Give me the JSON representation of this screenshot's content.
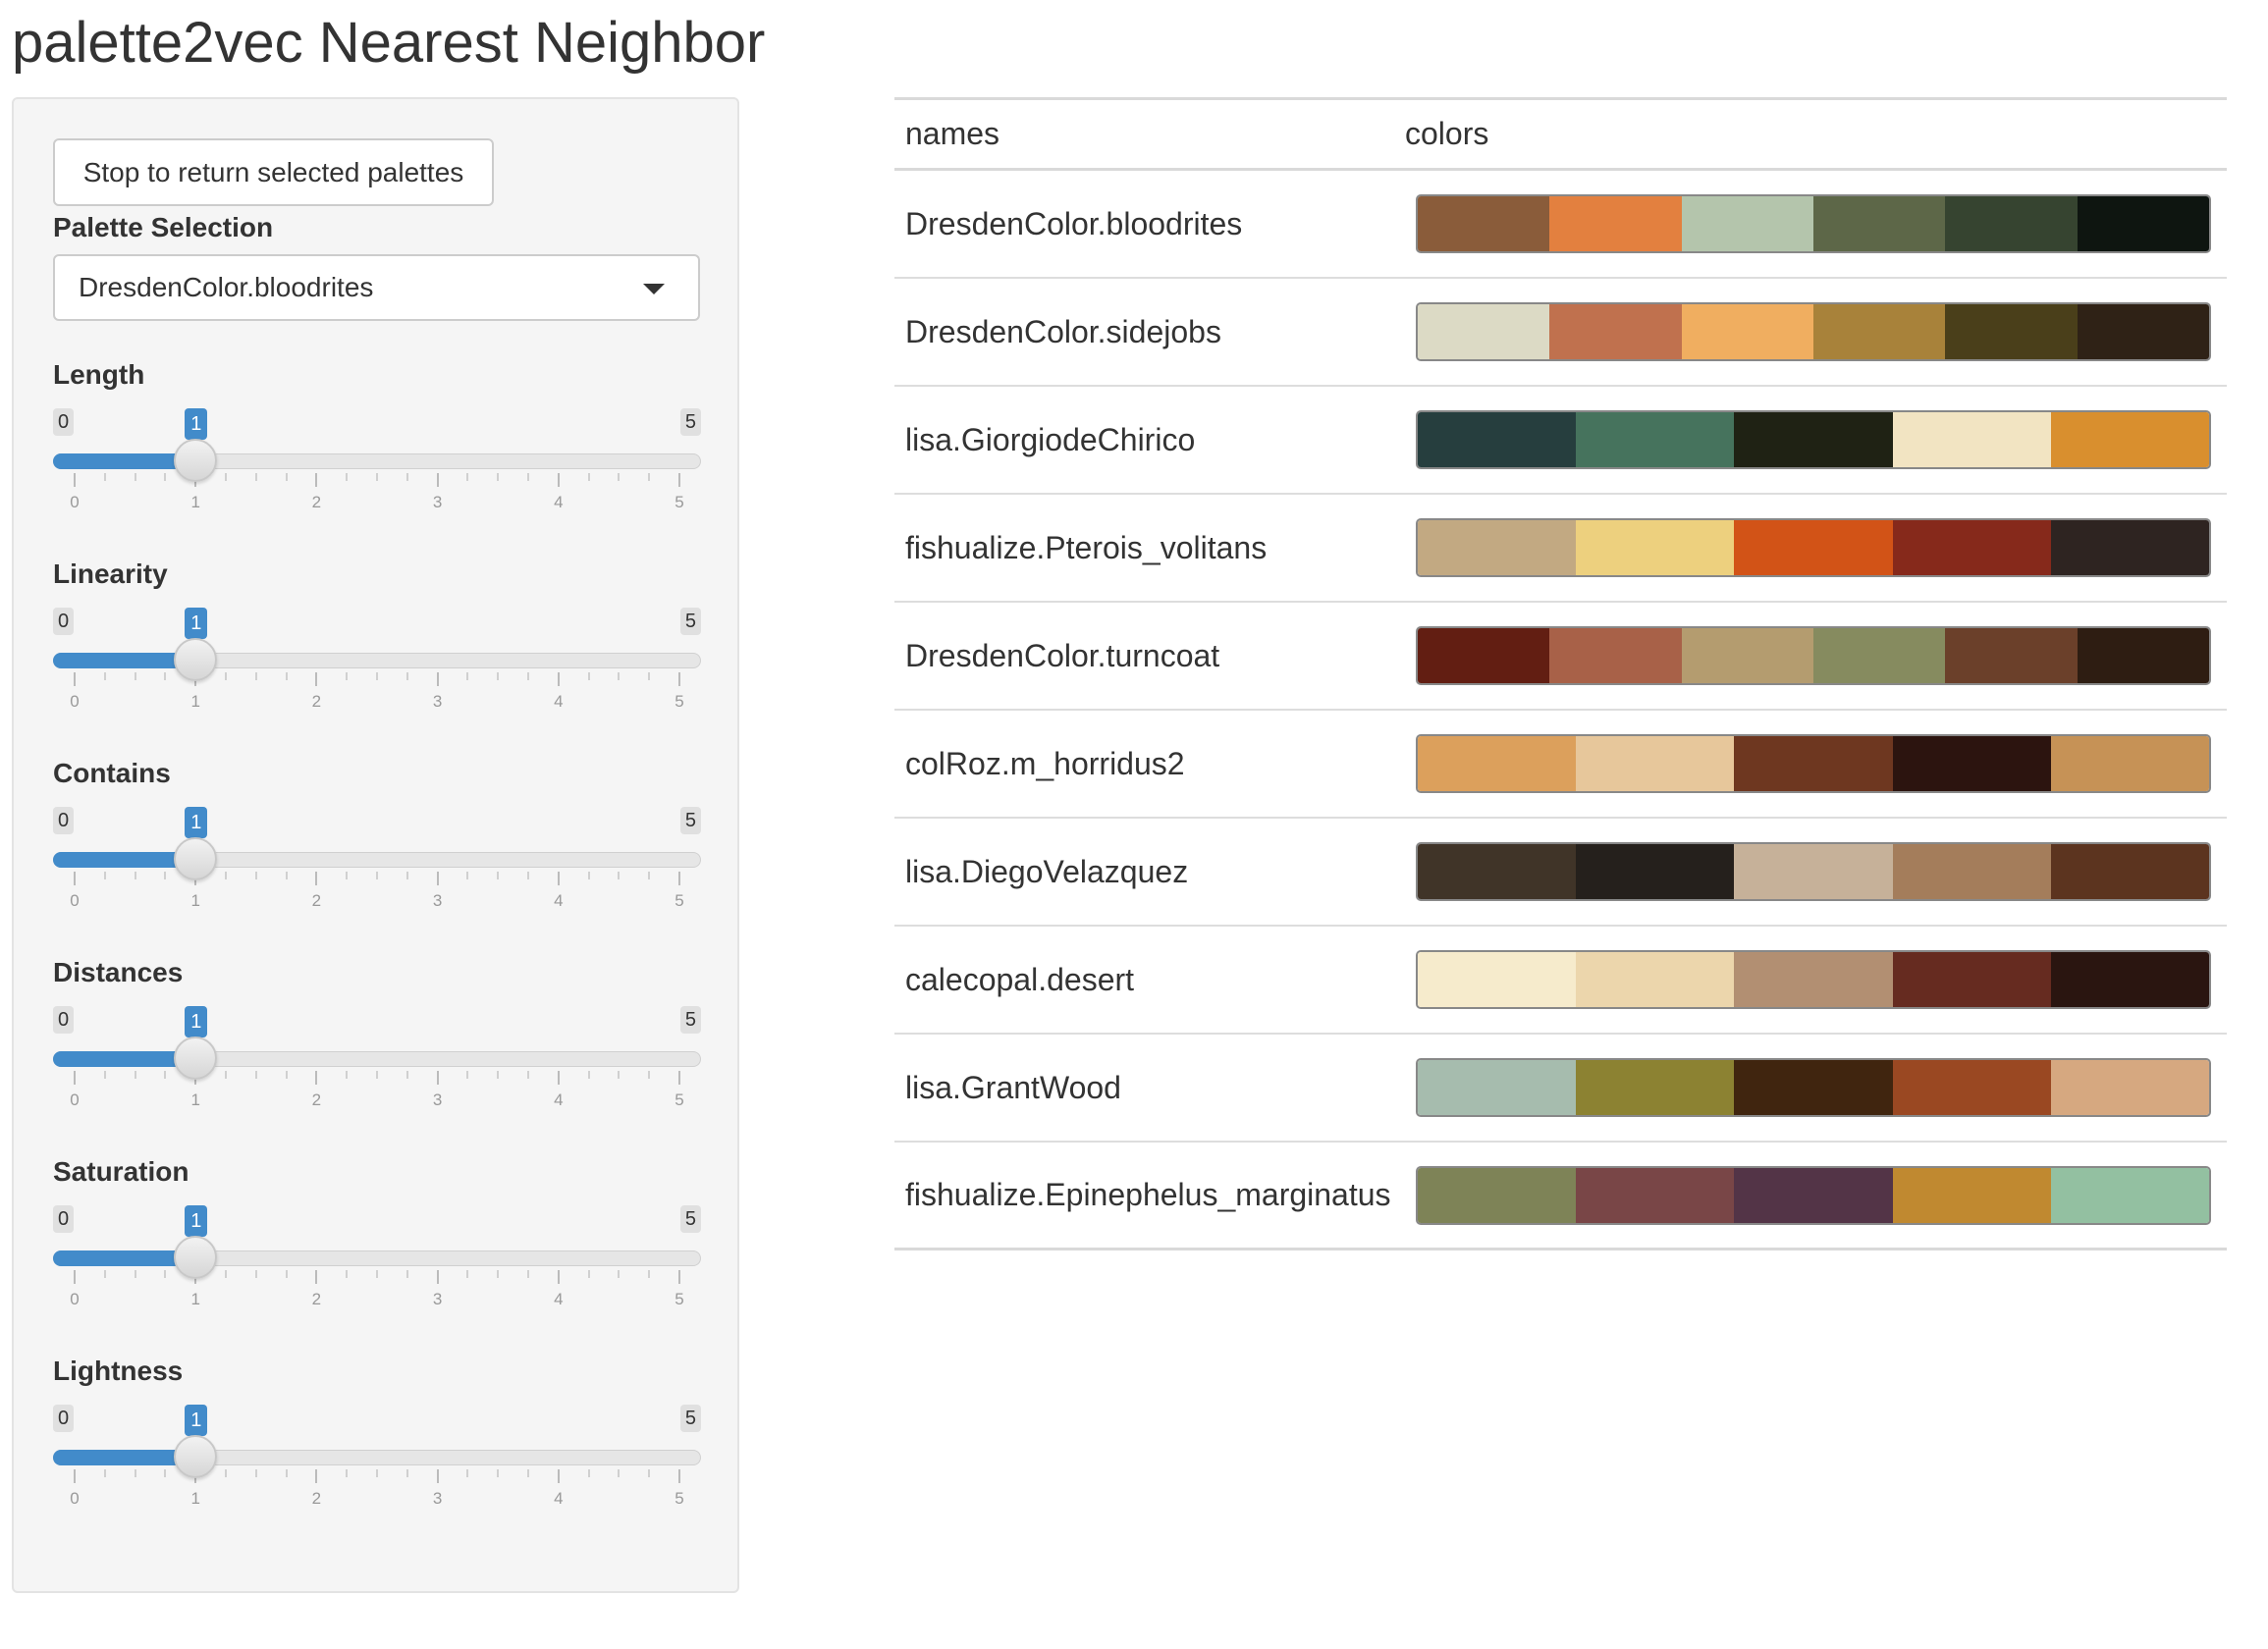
{
  "page": {
    "title": "palette2vec Nearest Neighbor"
  },
  "sidebar": {
    "stop_button_label": "Stop to return selected palettes",
    "palette_selection_label": "Palette Selection",
    "palette_selected": "DresdenColor.bloodrites",
    "sliders": [
      {
        "label": "Length",
        "min": 0,
        "max": 5,
        "value": 1,
        "ticks": [
          "0",
          "1",
          "2",
          "3",
          "4",
          "5"
        ]
      },
      {
        "label": "Linearity",
        "min": 0,
        "max": 5,
        "value": 1,
        "ticks": [
          "0",
          "1",
          "2",
          "3",
          "4",
          "5"
        ]
      },
      {
        "label": "Contains",
        "min": 0,
        "max": 5,
        "value": 1,
        "ticks": [
          "0",
          "1",
          "2",
          "3",
          "4",
          "5"
        ]
      },
      {
        "label": "Distances",
        "min": 0,
        "max": 5,
        "value": 1,
        "ticks": [
          "0",
          "1",
          "2",
          "3",
          "4",
          "5"
        ]
      },
      {
        "label": "Saturation",
        "min": 0,
        "max": 5,
        "value": 1,
        "ticks": [
          "0",
          "1",
          "2",
          "3",
          "4",
          "5"
        ]
      },
      {
        "label": "Lightness",
        "min": 0,
        "max": 5,
        "value": 1,
        "ticks": [
          "0",
          "1",
          "2",
          "3",
          "4",
          "5"
        ]
      }
    ]
  },
  "table": {
    "headers": {
      "names": "names",
      "colors": "colors"
    },
    "rows": [
      {
        "name": "DresdenColor.bloodrites",
        "colors": [
          "#8a5c3a",
          "#e3803f",
          "#b4c5ac",
          "#5d6748",
          "#364430",
          "#0e1510"
        ]
      },
      {
        "name": "DresdenColor.sidejobs",
        "colors": [
          "#dcdac5",
          "#c0714e",
          "#f0ae60",
          "#a8823a",
          "#4a3f1a",
          "#2f2216"
        ]
      },
      {
        "name": "lisa.GiorgiodeChirico",
        "colors": [
          "#263e3e",
          "#46735d",
          "#1f2214",
          "#f2e4c2",
          "#d98f2e"
        ]
      },
      {
        "name": "fishualize.Pterois_volitans",
        "colors": [
          "#c2a982",
          "#edd07e",
          "#d25317",
          "#86291b",
          "#2e2421"
        ]
      },
      {
        "name": "DresdenColor.turncoat",
        "colors": [
          "#621e12",
          "#a86148",
          "#b49c6f",
          "#868b5f",
          "#6b402a",
          "#2e1d12"
        ]
      },
      {
        "name": "colRoz.m_horridus2",
        "colors": [
          "#dca05c",
          "#e7c79b",
          "#6e3720",
          "#2c140f",
          "#c69256"
        ]
      },
      {
        "name": "lisa.DiegoVelazquez",
        "colors": [
          "#403428",
          "#25201c",
          "#c6b199",
          "#a47d5b",
          "#5c341f"
        ]
      },
      {
        "name": "calecopal.desert",
        "colors": [
          "#f6ebcc",
          "#ecd6ac",
          "#b28f72",
          "#662b20",
          "#2a1510"
        ]
      },
      {
        "name": "lisa.GrantWood",
        "colors": [
          "#a6bcae",
          "#8c8232",
          "#40250f",
          "#9a4822",
          "#d6a880"
        ]
      },
      {
        "name": "fishualize.Epinephelus_marginatus",
        "colors": [
          "#7e8357",
          "#794647",
          "#533447",
          "#c08930",
          "#93c0a1"
        ]
      }
    ]
  }
}
